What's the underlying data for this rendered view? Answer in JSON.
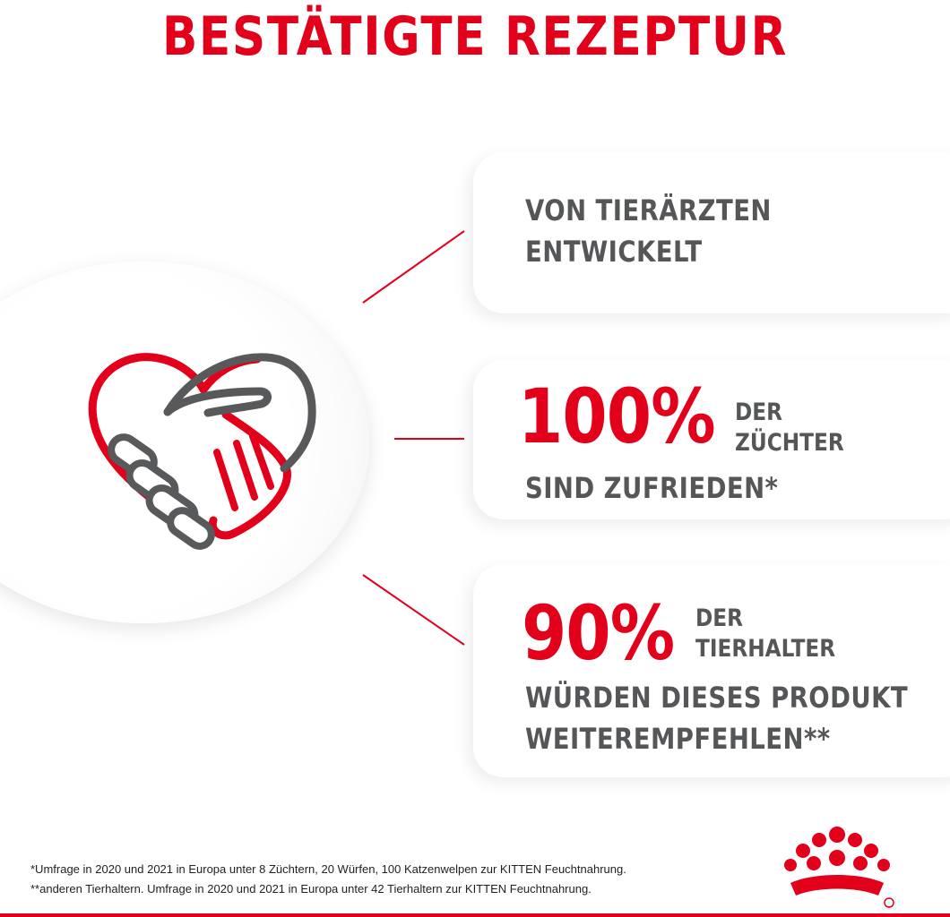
{
  "header": {
    "title": "BESTÄTIGTE REZEPTUR"
  },
  "cards": {
    "first": {
      "line1": "VON TIERÄRZTEN",
      "line2": "ENTWICKELT"
    },
    "second": {
      "percent": "100%",
      "small1": "DER",
      "small2": "ZÜCHTER",
      "line": "SIND ZUFRIEDEN*"
    },
    "third": {
      "percent": "90%",
      "small1": "DER",
      "small2": "TIERHALTER",
      "line1": "WÜRDEN DIESES PRODUKT",
      "line2": "WEITEREMPFEHLEN**"
    }
  },
  "footnotes": {
    "note1": "*Umfrage in 2020 und 2021 in Europa unter 8 Züchtern, 20 Würfen, 100 Katzenwelpen zur KITTEN Feuchtnahrung.",
    "note2": "**anderen Tierhaltern. Umfrage in 2020 und 2021 in Europa unter 42 Tierhaltern zur KITTEN Feuchtnahrung."
  },
  "colors": {
    "brand_red": "#e2001a",
    "text_gray": "#555658",
    "background": "#ffffff"
  },
  "icons": {
    "main": "handshake-heart-icon",
    "logo": "royal-canin-crown-logo",
    "registered": "registered-mark"
  }
}
